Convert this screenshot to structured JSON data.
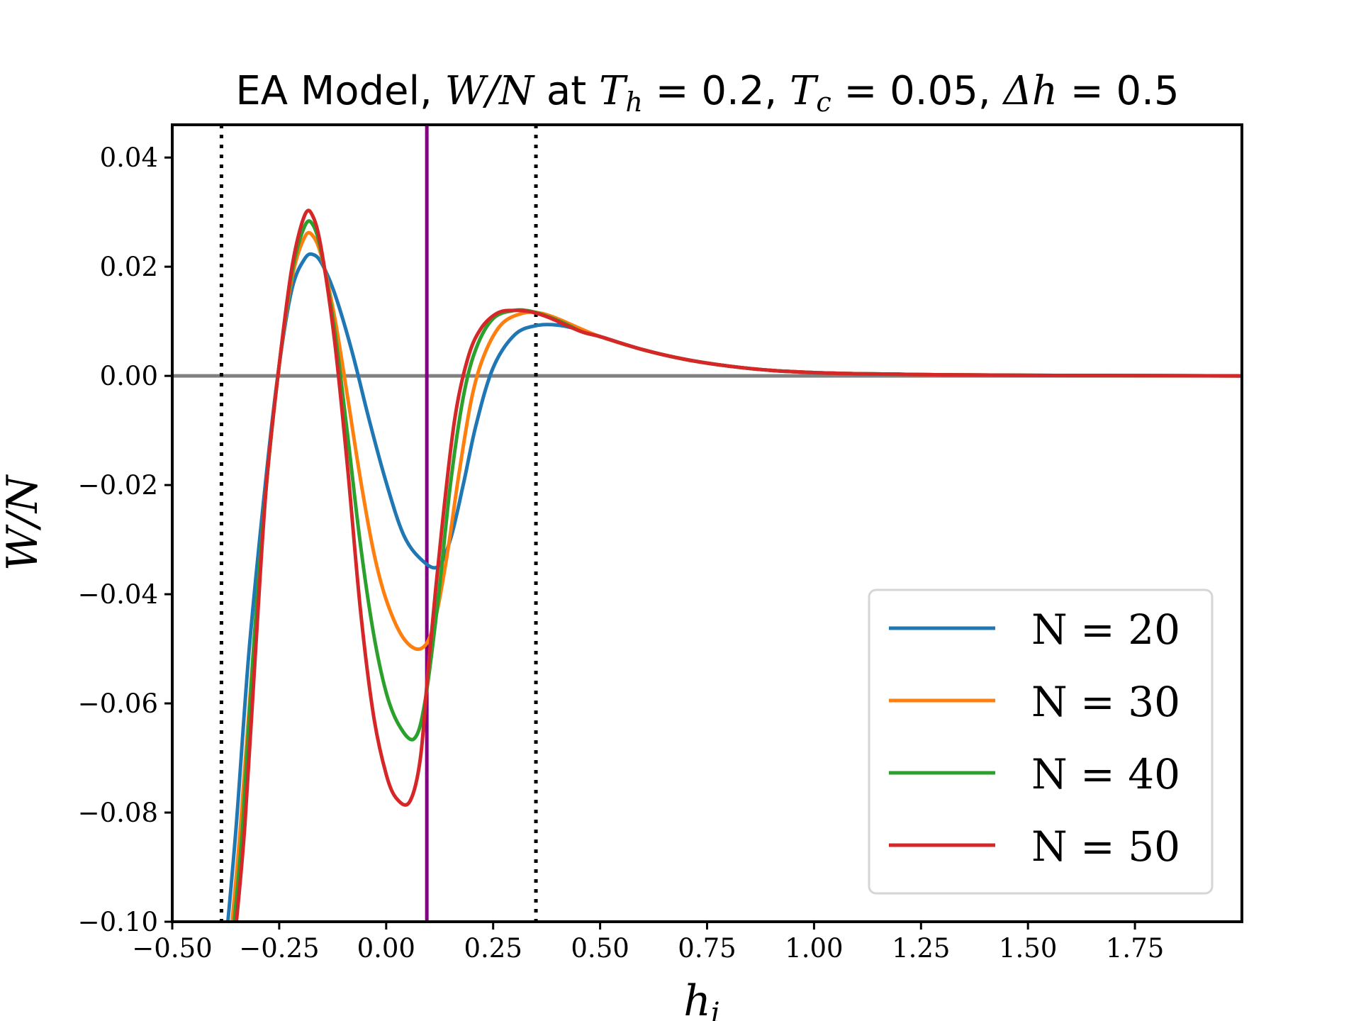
{
  "chart_data": {
    "type": "line",
    "title_parts": [
      "EA Model, ",
      "W/N",
      " at ",
      "T",
      "h",
      " = 0.2, ",
      "T",
      "c",
      " = 0.05, ",
      "Δh",
      " = 0.5"
    ],
    "xlabel_main": "h",
    "xlabel_sub": "i",
    "ylabel": "W/N",
    "xlim": [
      -0.5,
      2.0
    ],
    "ylim": [
      -0.1,
      0.046
    ],
    "xticks": [
      -0.5,
      -0.25,
      0.0,
      0.25,
      0.5,
      0.75,
      1.0,
      1.25,
      1.5,
      1.75
    ],
    "xtick_labels": [
      "−0.50",
      "−0.25",
      "0.00",
      "0.25",
      "0.50",
      "0.75",
      "1.00",
      "1.25",
      "1.50",
      "1.75"
    ],
    "yticks": [
      -0.1,
      -0.08,
      -0.06,
      -0.04,
      -0.02,
      0.0,
      0.02,
      0.04
    ],
    "ytick_labels": [
      "−0.10",
      "−0.08",
      "−0.06",
      "−0.04",
      "−0.02",
      "0.00",
      "0.02",
      "0.04"
    ],
    "grid": false,
    "legend_position": "lower-right",
    "reference_lines": {
      "horizontal_zero": {
        "y": 0.0,
        "color": "#808080"
      },
      "vertical_solid": {
        "x": 0.095,
        "color": "#800080"
      },
      "vertical_dotted": [
        {
          "x": -0.385
        },
        {
          "x": 0.35
        }
      ]
    },
    "series": [
      {
        "name": "N = 20",
        "legend_label": "N = 20",
        "color": "#1f77b4",
        "x": [
          -0.37,
          -0.35,
          -0.32,
          -0.28,
          -0.25,
          -0.22,
          -0.19,
          -0.17,
          -0.15,
          -0.12,
          -0.08,
          -0.04,
          0.0,
          0.04,
          0.08,
          0.12,
          0.15,
          0.18,
          0.21,
          0.25,
          0.3,
          0.35,
          0.4,
          0.45,
          0.5,
          0.6,
          0.7,
          0.8,
          0.9,
          1.0,
          1.1,
          1.2,
          1.3,
          1.5,
          1.75,
          2.0
        ],
        "y": [
          -0.1,
          -0.082,
          -0.05,
          -0.018,
          0.002,
          0.016,
          0.0215,
          0.0222,
          0.0205,
          0.015,
          0.0045,
          -0.008,
          -0.0195,
          -0.029,
          -0.0335,
          -0.035,
          -0.03,
          -0.02,
          -0.009,
          0.0015,
          0.0075,
          0.0092,
          0.0093,
          0.0085,
          0.0072,
          0.0048,
          0.003,
          0.0018,
          0.001,
          0.0006,
          0.0004,
          0.0003,
          0.0002,
          0.0001,
          5e-05,
          0.0
        ]
      },
      {
        "name": "N = 30",
        "legend_label": "N = 30",
        "color": "#ff7f0e",
        "x": [
          -0.36,
          -0.34,
          -0.31,
          -0.28,
          -0.25,
          -0.22,
          -0.19,
          -0.17,
          -0.15,
          -0.12,
          -0.09,
          -0.06,
          -0.03,
          0.0,
          0.04,
          0.08,
          0.11,
          0.14,
          0.17,
          0.2,
          0.23,
          0.27,
          0.32,
          0.36,
          0.4,
          0.45,
          0.5,
          0.6,
          0.7,
          0.8,
          0.9,
          1.0,
          1.1,
          1.2,
          1.3,
          1.5,
          1.75,
          2.0
        ],
        "y": [
          -0.1,
          -0.082,
          -0.05,
          -0.02,
          0.002,
          0.018,
          0.0255,
          0.0255,
          0.0215,
          0.0105,
          -0.004,
          -0.019,
          -0.032,
          -0.041,
          -0.048,
          -0.05,
          -0.046,
          -0.034,
          -0.018,
          -0.004,
          0.004,
          0.0095,
          0.0115,
          0.0115,
          0.0105,
          0.0088,
          0.0072,
          0.0048,
          0.003,
          0.0018,
          0.001,
          0.0006,
          0.0004,
          0.0003,
          0.0002,
          0.0001,
          5e-05,
          0.0
        ]
      },
      {
        "name": "N = 40",
        "legend_label": "N = 40",
        "color": "#2ca02c",
        "x": [
          -0.355,
          -0.335,
          -0.31,
          -0.28,
          -0.25,
          -0.22,
          -0.19,
          -0.17,
          -0.15,
          -0.12,
          -0.09,
          -0.06,
          -0.03,
          0.0,
          0.03,
          0.065,
          0.09,
          0.12,
          0.15,
          0.18,
          0.21,
          0.25,
          0.3,
          0.34,
          0.38,
          0.42,
          0.46,
          0.5,
          0.6,
          0.7,
          0.8,
          0.9,
          1.0,
          1.1,
          1.2,
          1.3,
          1.5,
          1.75,
          2.0
        ],
        "y": [
          -0.1,
          -0.082,
          -0.05,
          -0.02,
          0.002,
          0.019,
          0.0275,
          0.0275,
          0.022,
          0.008,
          -0.011,
          -0.031,
          -0.047,
          -0.058,
          -0.064,
          -0.0665,
          -0.06,
          -0.042,
          -0.02,
          -0.004,
          0.005,
          0.0105,
          0.012,
          0.0118,
          0.0108,
          0.0095,
          0.008,
          0.0072,
          0.0048,
          0.003,
          0.0018,
          0.001,
          0.0006,
          0.0004,
          0.0003,
          0.0002,
          0.0001,
          5e-05,
          0.0
        ]
      },
      {
        "name": "N = 50",
        "legend_label": "N = 50",
        "color": "#d62728",
        "x": [
          -0.35,
          -0.33,
          -0.305,
          -0.28,
          -0.25,
          -0.22,
          -0.19,
          -0.17,
          -0.15,
          -0.12,
          -0.09,
          -0.06,
          -0.03,
          0.0,
          0.025,
          0.055,
          0.08,
          0.1,
          0.13,
          0.16,
          0.19,
          0.22,
          0.26,
          0.3,
          0.34,
          0.38,
          0.42,
          0.46,
          0.5,
          0.6,
          0.7,
          0.8,
          0.9,
          1.0,
          1.1,
          1.2,
          1.3,
          1.5,
          1.75,
          2.0
        ],
        "y": [
          -0.1,
          -0.082,
          -0.05,
          -0.02,
          0.002,
          0.02,
          0.0295,
          0.029,
          0.0225,
          0.006,
          -0.017,
          -0.043,
          -0.062,
          -0.073,
          -0.0775,
          -0.078,
          -0.07,
          -0.052,
          -0.028,
          -0.008,
          0.003,
          0.0085,
          0.0115,
          0.012,
          0.0117,
          0.0107,
          0.0093,
          0.008,
          0.0072,
          0.0048,
          0.003,
          0.0018,
          0.001,
          0.0006,
          0.0004,
          0.0003,
          0.0002,
          0.0001,
          5e-05,
          0.0
        ]
      }
    ]
  }
}
